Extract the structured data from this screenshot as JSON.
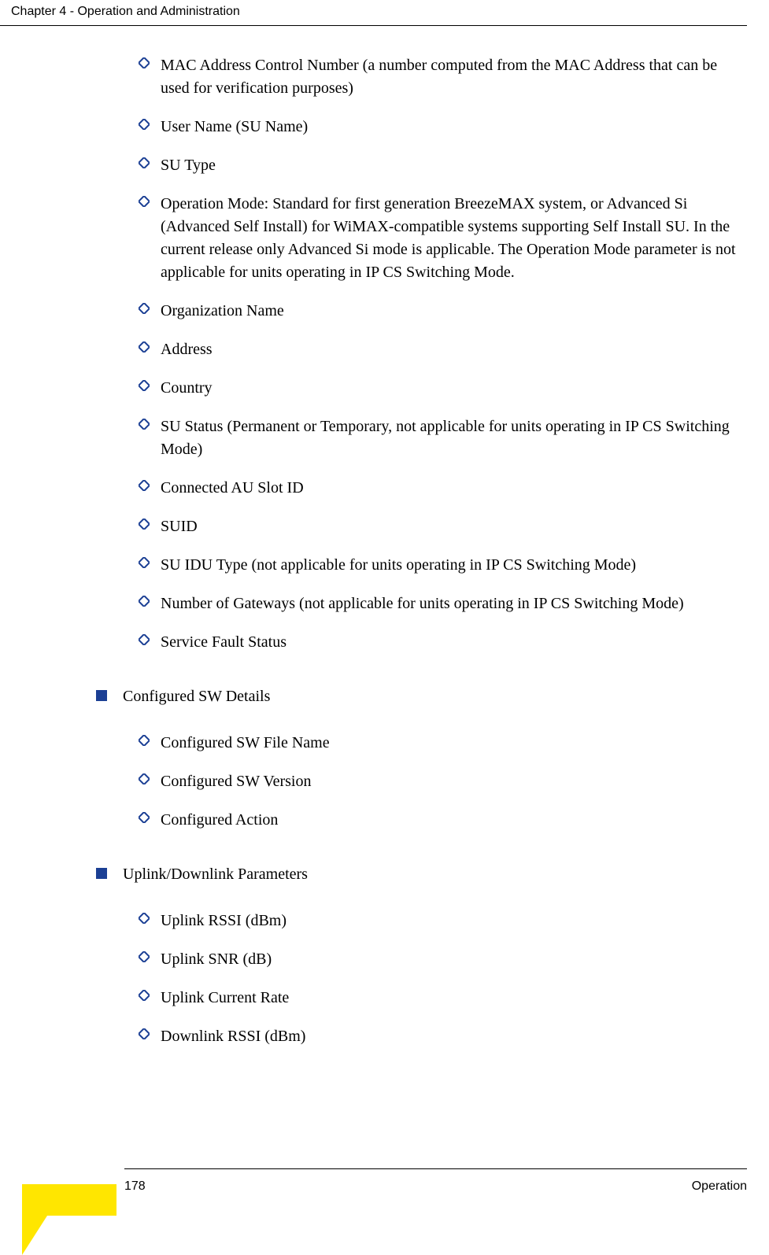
{
  "header": {
    "chapter": "Chapter 4 - Operation and Administration"
  },
  "bullets": {
    "diamond_stroke": "#1b3f94",
    "square_fill": "#1b3f94"
  },
  "section1_items": [
    "MAC Address Control Number (a number computed from the MAC Address that can be used for verification purposes)",
    "User Name (SU Name)",
    "SU Type",
    "Operation Mode: Standard for first generation BreezeMAX system, or Advanced Si (Advanced Self Install) for WiMAX-compatible systems supporting Self Install SU. In the current release only Advanced Si mode is applicable. The Operation Mode parameter is not applicable for units operating in IP CS Switching Mode.",
    "Organization Name",
    "Address",
    "Country",
    "SU Status (Permanent or Temporary, not applicable for units operating in IP CS Switching Mode)",
    "Connected AU Slot ID",
    "SUID",
    "SU IDU Type (not applicable for units operating in IP CS Switching Mode)",
    "Number of Gateways (not applicable for units operating in IP CS Switching Mode)",
    "Service Fault Status"
  ],
  "section2_title": "Configured SW Details",
  "section2_items": [
    "Configured SW File Name",
    "Configured SW Version",
    "Configured Action"
  ],
  "section3_title": "Uplink/Downlink Parameters",
  "section3_items": [
    "Uplink RSSI (dBm)",
    "Uplink SNR (dB)",
    "Uplink Current Rate",
    "Downlink RSSI (dBm)"
  ],
  "footer": {
    "page": "178",
    "right": "Operation"
  },
  "corner": {
    "yellow": "#ffe600"
  }
}
